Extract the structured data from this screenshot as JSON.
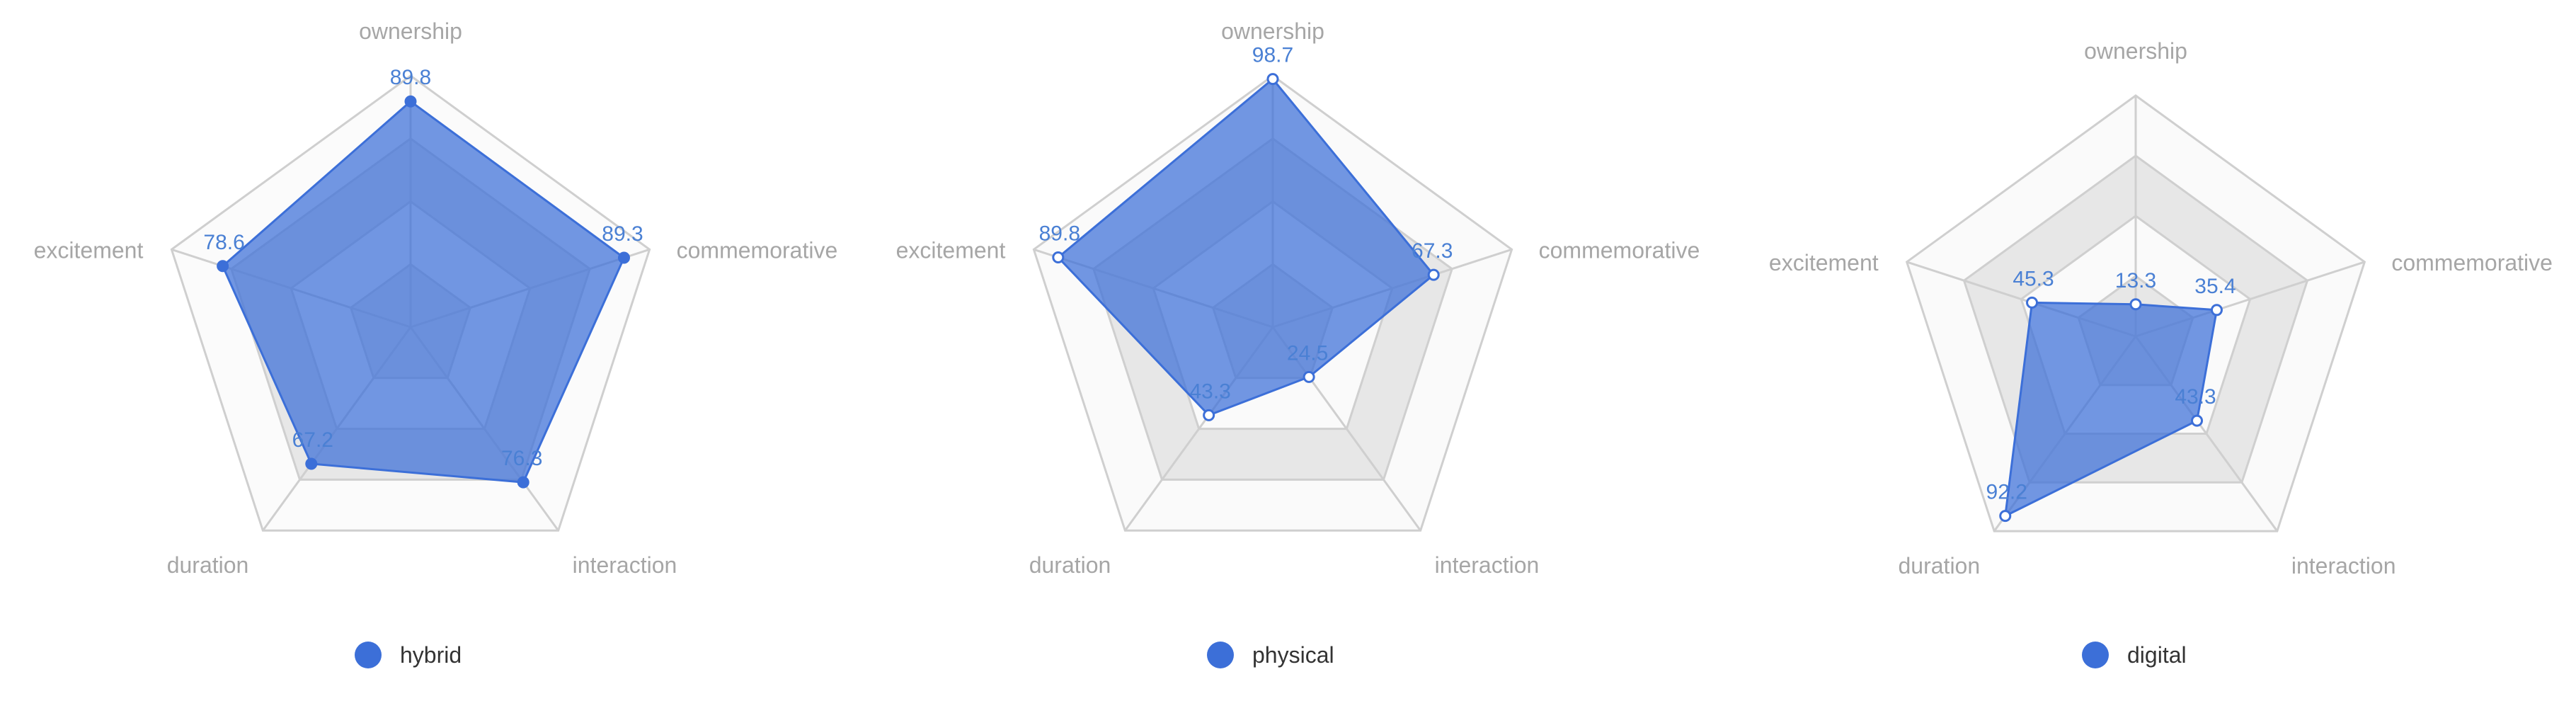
{
  "colors": {
    "series": "#3c6fd8",
    "series_fill": "#3c6fd8",
    "grid_line": "#cfcfcf",
    "band_light": "#fafafa",
    "band_dark": "#e7e7e7",
    "axis_label": "#a6a6a6",
    "data_label": "#4a80d4"
  },
  "chart_data": [
    {
      "type": "radar",
      "axes": [
        "ownership",
        "commemorative",
        "interaction",
        "duration",
        "excitement"
      ],
      "series": [
        {
          "name": "hybrid",
          "values": [
            89.8,
            89.3,
            76.3,
            67.2,
            78.6
          ],
          "marker": "filled"
        }
      ],
      "max": 100,
      "legend": "bottom"
    },
    {
      "type": "radar",
      "axes": [
        "ownership",
        "commemorative",
        "interaction",
        "duration",
        "excitement"
      ],
      "series": [
        {
          "name": "physical",
          "values": [
            98.7,
            67.3,
            24.5,
            43.3,
            89.8
          ],
          "marker": "hollow"
        }
      ],
      "max": 100,
      "legend": "bottom"
    },
    {
      "type": "radar",
      "axes": [
        "ownership",
        "commemorative",
        "interaction",
        "duration",
        "excitement"
      ],
      "series": [
        {
          "name": "digital",
          "values": [
            13.3,
            35.4,
            43.3,
            92.2,
            45.3
          ],
          "marker": "hollow"
        }
      ],
      "max": 100,
      "legend": "bottom"
    }
  ]
}
